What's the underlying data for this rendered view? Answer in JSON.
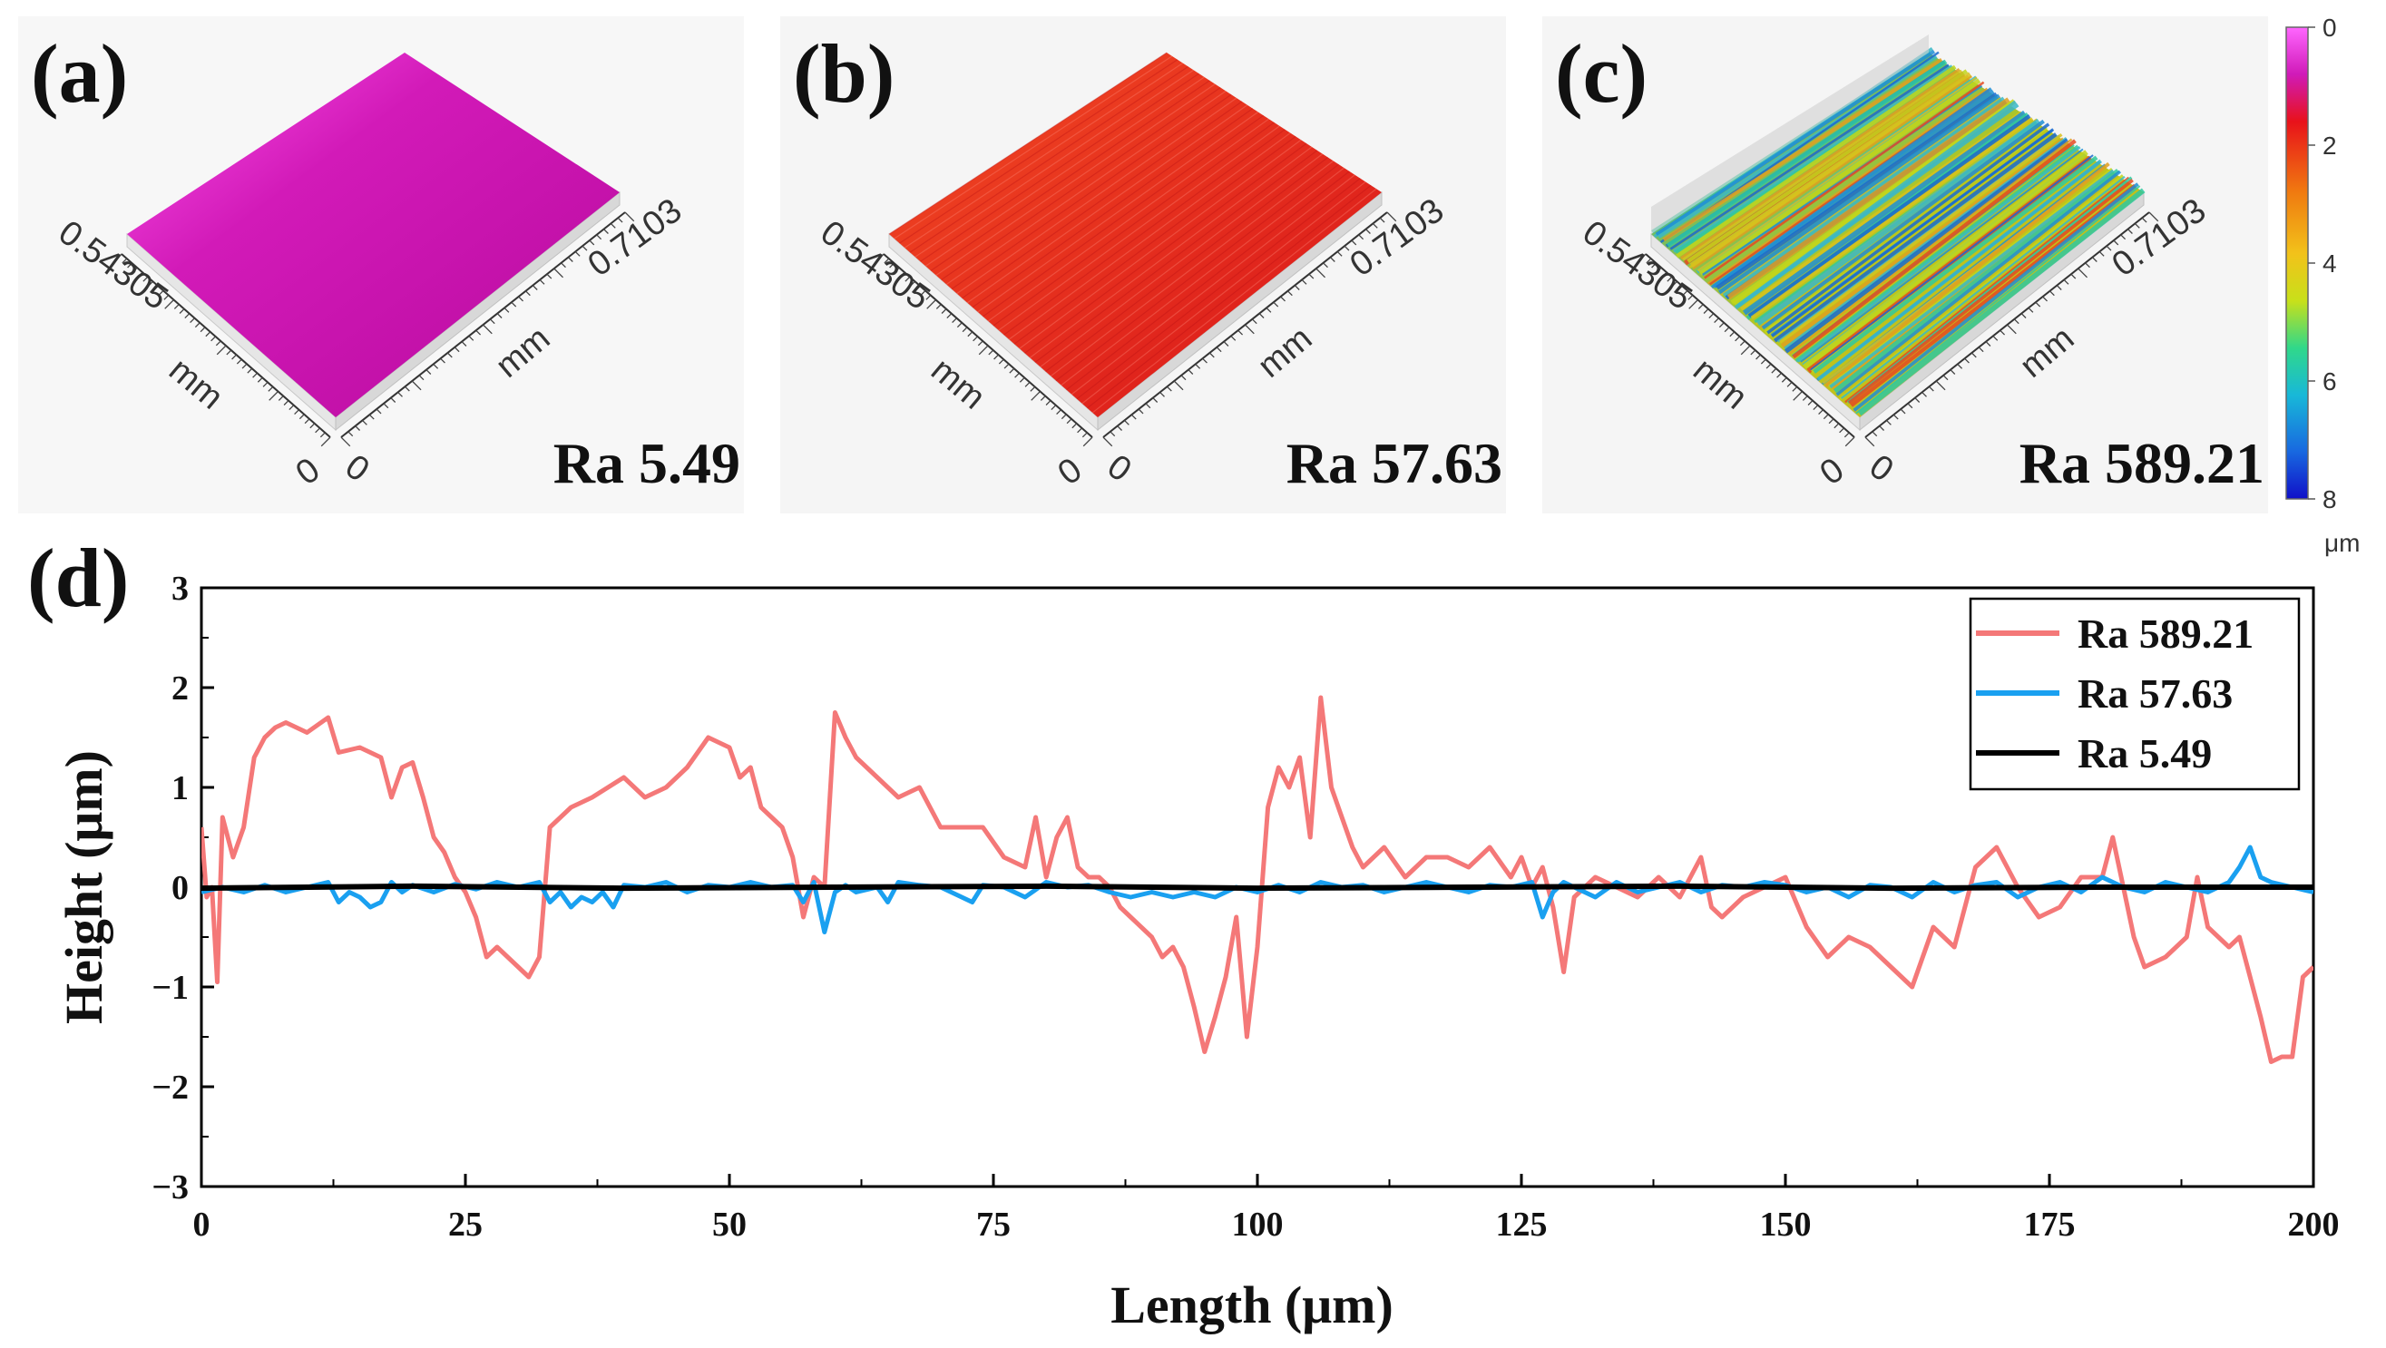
{
  "panels": [
    {
      "letter": "(a)",
      "ra": "Ra 5.49",
      "x_extent": "0.7103",
      "y_extent": "0.54305",
      "unit": "mm",
      "zero": "0",
      "style": "smooth",
      "color": "#d01ab8"
    },
    {
      "letter": "(b)",
      "ra": "Ra 57.63",
      "x_extent": "0.7103",
      "y_extent": "0.54305",
      "unit": "mm",
      "zero": "0",
      "style": "slight",
      "color": "#e8321e"
    },
    {
      "letter": "(c)",
      "ra": "Ra 589.21",
      "x_extent": "0.7103",
      "y_extent": "0.54305",
      "unit": "mm",
      "zero": "0",
      "style": "rough",
      "color": "#2ea6c8"
    }
  ],
  "colorbar": {
    "ticks": [
      "0",
      "2",
      "4",
      "6",
      "8"
    ],
    "unit": "μm",
    "colors": [
      "#ff66ff",
      "#d01ab8",
      "#e8121a",
      "#f07a10",
      "#f2c21a",
      "#c8e01a",
      "#30d88a",
      "#18b8d8",
      "#1868e0",
      "#1010c8"
    ]
  },
  "panel_d": {
    "letter": "(d)"
  },
  "chart_data": {
    "type": "line",
    "title": "",
    "xlabel": "Length (μm)",
    "ylabel": "Height (μm)",
    "xlim": [
      0,
      200
    ],
    "ylim": [
      -3,
      3
    ],
    "xticks": [
      "0",
      "25",
      "50",
      "75",
      "100",
      "125",
      "150",
      "175",
      "200"
    ],
    "yticks": [
      "3",
      "2",
      "1",
      "0",
      "−1",
      "−2",
      "−3"
    ],
    "legend_position": "top-right",
    "series": [
      {
        "name": "Ra 589.21",
        "color": "#f47878",
        "x": [
          0,
          0.5,
          1,
          1.5,
          2,
          3,
          4,
          5,
          6,
          7,
          8,
          10,
          12,
          13,
          15,
          17,
          18,
          19,
          20,
          21,
          22,
          23,
          24,
          25,
          26,
          27,
          28,
          30,
          31,
          32,
          33,
          35,
          37,
          40,
          42,
          44,
          46,
          48,
          50,
          51,
          52,
          53,
          55,
          56,
          57,
          58,
          59,
          60,
          61,
          62,
          64,
          66,
          68,
          70,
          72,
          74,
          76,
          78,
          79,
          80,
          81,
          82,
          83,
          84,
          85,
          86,
          87,
          88,
          90,
          91,
          92,
          93,
          94,
          95,
          96,
          97,
          98,
          99,
          100,
          101,
          102,
          103,
          104,
          105,
          106,
          107,
          108,
          109,
          110,
          112,
          114,
          116,
          118,
          120,
          122,
          124,
          125,
          126,
          127,
          128,
          129,
          130,
          131,
          132,
          134,
          136,
          138,
          140,
          142,
          143,
          144,
          146,
          148,
          150,
          152,
          154,
          156,
          158,
          160,
          162,
          164,
          166,
          168,
          170,
          172,
          174,
          176,
          178,
          180,
          181,
          182,
          183,
          184,
          186,
          188,
          189,
          190,
          192,
          193,
          194,
          195,
          196,
          197,
          198,
          199,
          200
        ],
        "y": [
          0.6,
          -0.1,
          0.0,
          -0.95,
          0.7,
          0.3,
          0.6,
          1.3,
          1.5,
          1.6,
          1.65,
          1.55,
          1.7,
          1.35,
          1.4,
          1.3,
          0.9,
          1.2,
          1.25,
          0.9,
          0.5,
          0.35,
          0.1,
          -0.05,
          -0.3,
          -0.7,
          -0.6,
          -0.8,
          -0.9,
          -0.7,
          0.6,
          0.8,
          0.9,
          1.1,
          0.9,
          1.0,
          1.2,
          1.5,
          1.4,
          1.1,
          1.2,
          0.8,
          0.6,
          0.3,
          -0.3,
          0.1,
          0.0,
          1.75,
          1.5,
          1.3,
          1.1,
          0.9,
          1.0,
          0.6,
          0.6,
          0.6,
          0.3,
          0.2,
          0.7,
          0.1,
          0.5,
          0.7,
          0.2,
          0.1,
          0.1,
          0.0,
          -0.2,
          -0.3,
          -0.5,
          -0.7,
          -0.6,
          -0.8,
          -1.2,
          -1.65,
          -1.3,
          -0.9,
          -0.3,
          -1.5,
          -0.6,
          0.8,
          1.2,
          1.0,
          1.3,
          0.5,
          1.9,
          1.0,
          0.7,
          0.4,
          0.2,
          0.4,
          0.1,
          0.3,
          0.3,
          0.2,
          0.4,
          0.1,
          0.3,
          0.0,
          0.2,
          -0.2,
          -0.85,
          -0.1,
          0.0,
          0.1,
          0.0,
          -0.1,
          0.1,
          -0.1,
          0.3,
          -0.2,
          -0.3,
          -0.1,
          0.0,
          0.1,
          -0.4,
          -0.7,
          -0.5,
          -0.6,
          -0.8,
          -1.0,
          -0.4,
          -0.6,
          0.2,
          0.4,
          0.0,
          -0.3,
          -0.2,
          0.1,
          0.1,
          0.5,
          0.0,
          -0.5,
          -0.8,
          -0.7,
          -0.5,
          0.1,
          -0.4,
          -0.6,
          -0.5,
          -0.9,
          -1.3,
          -1.75,
          -1.7,
          -1.7,
          -0.9,
          -0.8
        ]
      },
      {
        "name": "Ra 57.63",
        "color": "#1aa0f0",
        "x": [
          0,
          2,
          4,
          6,
          8,
          10,
          12,
          13,
          14,
          15,
          16,
          17,
          18,
          19,
          20,
          22,
          24,
          26,
          28,
          30,
          32,
          33,
          34,
          35,
          36,
          37,
          38,
          39,
          40,
          42,
          44,
          46,
          48,
          50,
          52,
          54,
          56,
          57,
          58,
          59,
          60,
          61,
          62,
          64,
          65,
          66,
          68,
          70,
          72,
          73,
          74,
          76,
          78,
          80,
          82,
          84,
          86,
          88,
          90,
          92,
          94,
          96,
          98,
          100,
          102,
          104,
          106,
          108,
          110,
          112,
          114,
          116,
          118,
          120,
          122,
          124,
          126,
          127,
          128,
          129,
          130,
          132,
          134,
          136,
          138,
          140,
          142,
          144,
          146,
          148,
          150,
          152,
          154,
          156,
          158,
          160,
          162,
          164,
          166,
          168,
          170,
          172,
          174,
          176,
          178,
          180,
          182,
          184,
          186,
          188,
          190,
          192,
          193,
          194,
          195,
          196,
          198,
          200
        ],
        "y": [
          -0.05,
          0.0,
          -0.05,
          0.02,
          -0.05,
          0.0,
          0.05,
          -0.15,
          -0.05,
          -0.1,
          -0.2,
          -0.15,
          0.05,
          -0.05,
          0.02,
          -0.05,
          0.03,
          -0.02,
          0.05,
          0.0,
          0.05,
          -0.15,
          -0.05,
          -0.2,
          -0.1,
          -0.15,
          -0.05,
          -0.2,
          0.02,
          0.0,
          0.05,
          -0.05,
          0.02,
          0.0,
          0.05,
          0.0,
          0.02,
          -0.15,
          0.05,
          -0.45,
          -0.05,
          0.02,
          -0.05,
          0.0,
          -0.15,
          0.05,
          0.02,
          0.0,
          -0.1,
          -0.15,
          0.02,
          0.0,
          -0.1,
          0.05,
          0.0,
          0.02,
          -0.05,
          -0.1,
          -0.05,
          -0.1,
          -0.05,
          -0.1,
          0.0,
          -0.05,
          0.02,
          -0.05,
          0.05,
          0.0,
          0.02,
          -0.05,
          0.0,
          0.05,
          0.0,
          -0.05,
          0.02,
          0.0,
          0.05,
          -0.3,
          -0.05,
          0.05,
          0.0,
          -0.1,
          0.05,
          -0.05,
          0.0,
          0.05,
          -0.05,
          0.02,
          0.0,
          0.05,
          0.02,
          -0.05,
          0.0,
          -0.1,
          0.02,
          0.0,
          -0.1,
          0.05,
          -0.05,
          0.02,
          0.05,
          -0.1,
          0.0,
          0.05,
          -0.05,
          0.1,
          0.0,
          -0.05,
          0.05,
          0.0,
          -0.05,
          0.05,
          0.2,
          0.4,
          0.1,
          0.05,
          0.0,
          -0.05
        ]
      },
      {
        "name": "Ra 5.49",
        "color": "#000000",
        "x": [
          0,
          20,
          40,
          60,
          80,
          100,
          120,
          140,
          160,
          180,
          200
        ],
        "y": [
          -0.01,
          0.01,
          -0.01,
          0.0,
          0.01,
          -0.01,
          0.0,
          0.01,
          -0.01,
          0.0,
          0.0
        ]
      }
    ]
  }
}
